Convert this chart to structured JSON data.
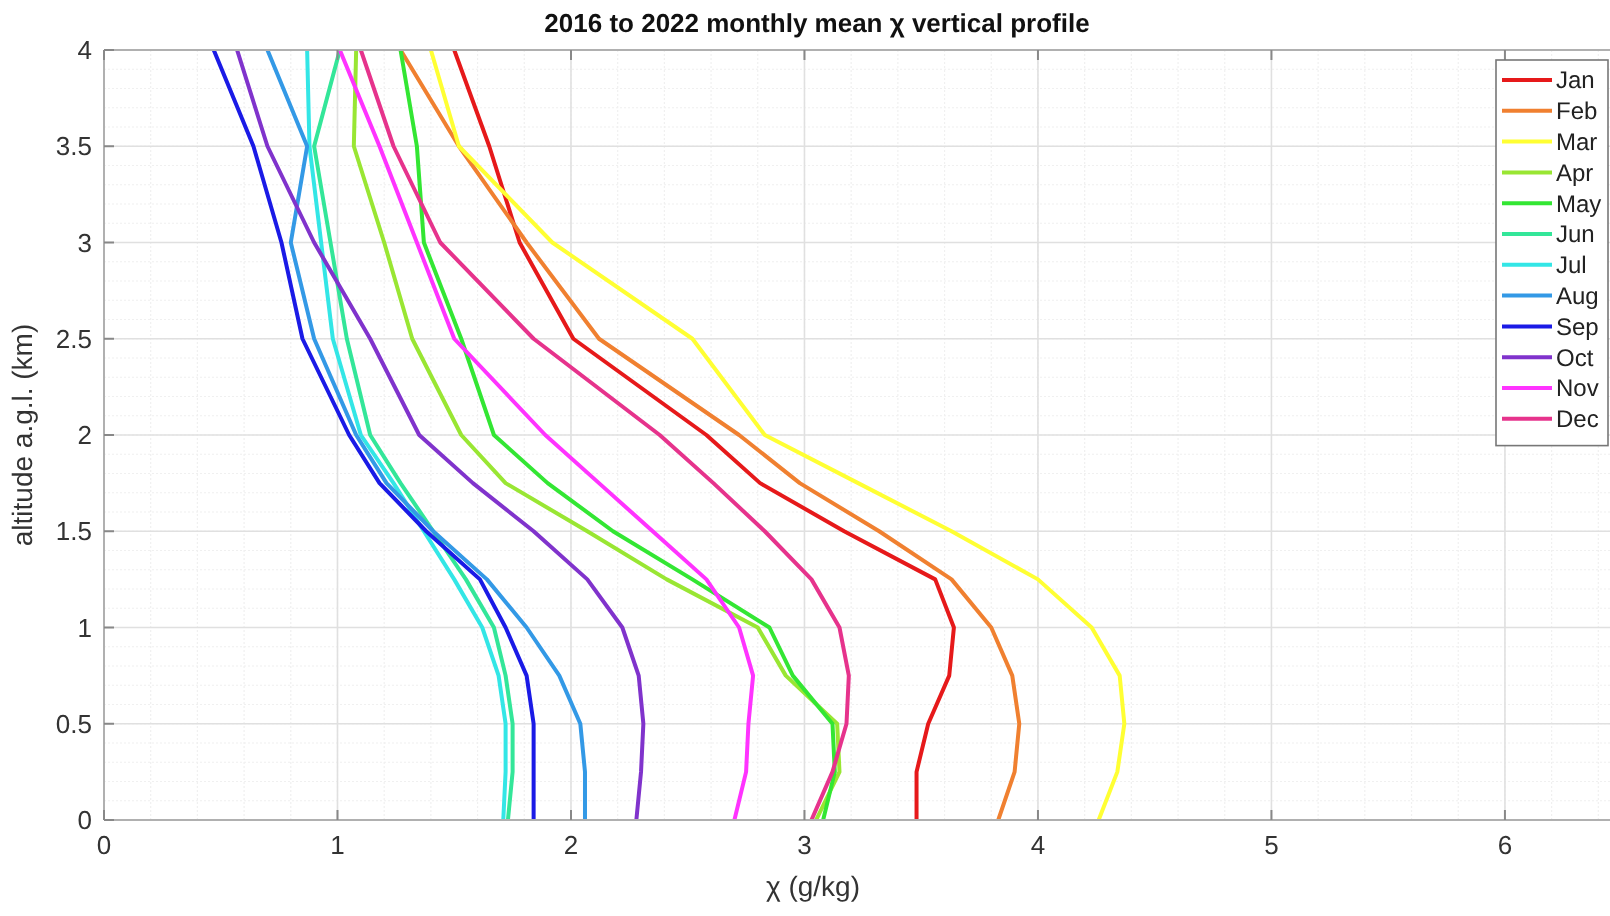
{
  "chart_data": {
    "type": "line",
    "title": "2016 to 2022 monthly mean χ vertical profile",
    "xlabel": "χ (g/kg)",
    "ylabel": "altitude a.g.l. (km)",
    "xlim": [
      0,
      6.45
    ],
    "xticks": [
      0,
      1,
      2,
      3,
      4,
      5,
      6
    ],
    "ylim": [
      0,
      4
    ],
    "yticks": [
      0,
      0.5,
      1,
      1.5,
      2,
      2.5,
      3,
      3.5,
      4
    ],
    "grid": true,
    "legend": "top right",
    "marker": "none",
    "line_style": "solid",
    "series": [
      {
        "name": "Jan",
        "color": "#e6191a",
        "x": [
          3.48,
          3.48,
          3.53,
          3.62,
          3.64,
          3.56,
          3.17,
          2.81,
          2.58,
          2.01,
          1.78,
          1.65,
          1.5
        ],
        "values": [
          0,
          0.25,
          0.5,
          0.75,
          1,
          1.25,
          1.5,
          1.75,
          2,
          2.5,
          3,
          3.5,
          4
        ]
      },
      {
        "name": "Feb",
        "color": "#f08030",
        "x": [
          3.83,
          3.9,
          3.92,
          3.89,
          3.8,
          3.63,
          3.32,
          2.98,
          2.72,
          2.12,
          1.81,
          1.52,
          1.27
        ],
        "values": [
          0,
          0.25,
          0.5,
          0.75,
          1,
          1.25,
          1.5,
          1.75,
          2,
          2.5,
          3,
          3.5,
          4
        ]
      },
      {
        "name": "Mar",
        "color": "#ffff33",
        "x": [
          4.26,
          4.34,
          4.37,
          4.35,
          4.23,
          4.0,
          3.63,
          3.23,
          2.83,
          2.52,
          1.92,
          1.52,
          1.4
        ],
        "values": [
          0,
          0.25,
          0.5,
          0.75,
          1,
          1.25,
          1.5,
          1.75,
          2,
          2.5,
          3,
          3.5,
          4
        ]
      },
      {
        "name": "Apr",
        "color": "#99e633",
        "x": [
          3.05,
          3.15,
          3.14,
          2.92,
          2.8,
          2.41,
          2.07,
          1.72,
          1.53,
          1.32,
          1.2,
          1.07,
          1.08
        ],
        "values": [
          0,
          0.25,
          0.5,
          0.75,
          1,
          1.25,
          1.5,
          1.75,
          2,
          2.5,
          3,
          3.5,
          4
        ]
      },
      {
        "name": "May",
        "color": "#33e633",
        "x": [
          3.08,
          3.13,
          3.12,
          2.95,
          2.85,
          2.52,
          2.18,
          1.9,
          1.67,
          1.53,
          1.37,
          1.34,
          1.27
        ],
        "values": [
          0,
          0.25,
          0.5,
          0.75,
          1,
          1.25,
          1.5,
          1.75,
          2,
          2.5,
          3,
          3.5,
          4
        ]
      },
      {
        "name": "Jun",
        "color": "#33e699",
        "x": [
          1.73,
          1.75,
          1.75,
          1.72,
          1.67,
          1.55,
          1.41,
          1.27,
          1.14,
          1.04,
          0.97,
          0.9,
          1.01
        ],
        "values": [
          0,
          0.25,
          0.5,
          0.75,
          1,
          1.25,
          1.5,
          1.75,
          2,
          2.5,
          3,
          3.5,
          4
        ]
      },
      {
        "name": "Jul",
        "color": "#33e6e6",
        "x": [
          1.71,
          1.72,
          1.72,
          1.69,
          1.62,
          1.5,
          1.37,
          1.24,
          1.1,
          0.98,
          0.93,
          0.88,
          0.87
        ],
        "values": [
          0,
          0.25,
          0.5,
          0.75,
          1,
          1.25,
          1.5,
          1.75,
          2,
          2.5,
          3,
          3.5,
          4
        ]
      },
      {
        "name": "Aug",
        "color": "#3399e6",
        "x": [
          2.06,
          2.06,
          2.04,
          1.95,
          1.81,
          1.64,
          1.41,
          1.21,
          1.08,
          0.9,
          0.8,
          0.87,
          0.7
        ],
        "values": [
          0,
          0.25,
          0.5,
          0.75,
          1,
          1.25,
          1.5,
          1.75,
          2,
          2.5,
          3,
          3.5,
          4
        ]
      },
      {
        "name": "Sep",
        "color": "#1a1ae6",
        "x": [
          1.84,
          1.84,
          1.84,
          1.81,
          1.72,
          1.61,
          1.38,
          1.18,
          1.05,
          0.85,
          0.76,
          0.64,
          0.47
        ],
        "values": [
          0,
          0.25,
          0.5,
          0.75,
          1,
          1.25,
          1.5,
          1.75,
          2,
          2.5,
          3,
          3.5,
          4
        ]
      },
      {
        "name": "Oct",
        "color": "#8033cc",
        "x": [
          2.28,
          2.3,
          2.31,
          2.29,
          2.22,
          2.07,
          1.84,
          1.58,
          1.35,
          1.14,
          0.9,
          0.7,
          0.57
        ],
        "values": [
          0,
          0.25,
          0.5,
          0.75,
          1,
          1.25,
          1.5,
          1.75,
          2,
          2.5,
          3,
          3.5,
          4
        ]
      },
      {
        "name": "Nov",
        "color": "#ff33ff",
        "x": [
          2.7,
          2.75,
          2.76,
          2.78,
          2.72,
          2.58,
          2.35,
          2.12,
          1.89,
          1.5,
          1.34,
          1.18,
          1.01
        ],
        "values": [
          0,
          0.25,
          0.5,
          0.75,
          1,
          1.25,
          1.5,
          1.75,
          2,
          2.5,
          3,
          3.5,
          4
        ]
      },
      {
        "name": "Dec",
        "color": "#e6338c",
        "x": [
          3.03,
          3.12,
          3.18,
          3.19,
          3.15,
          3.03,
          2.83,
          2.61,
          2.38,
          1.84,
          1.44,
          1.24,
          1.1
        ],
        "values": [
          0,
          0.25,
          0.5,
          0.75,
          1,
          1.25,
          1.5,
          1.75,
          2,
          2.5,
          3,
          3.5,
          4
        ]
      }
    ]
  }
}
